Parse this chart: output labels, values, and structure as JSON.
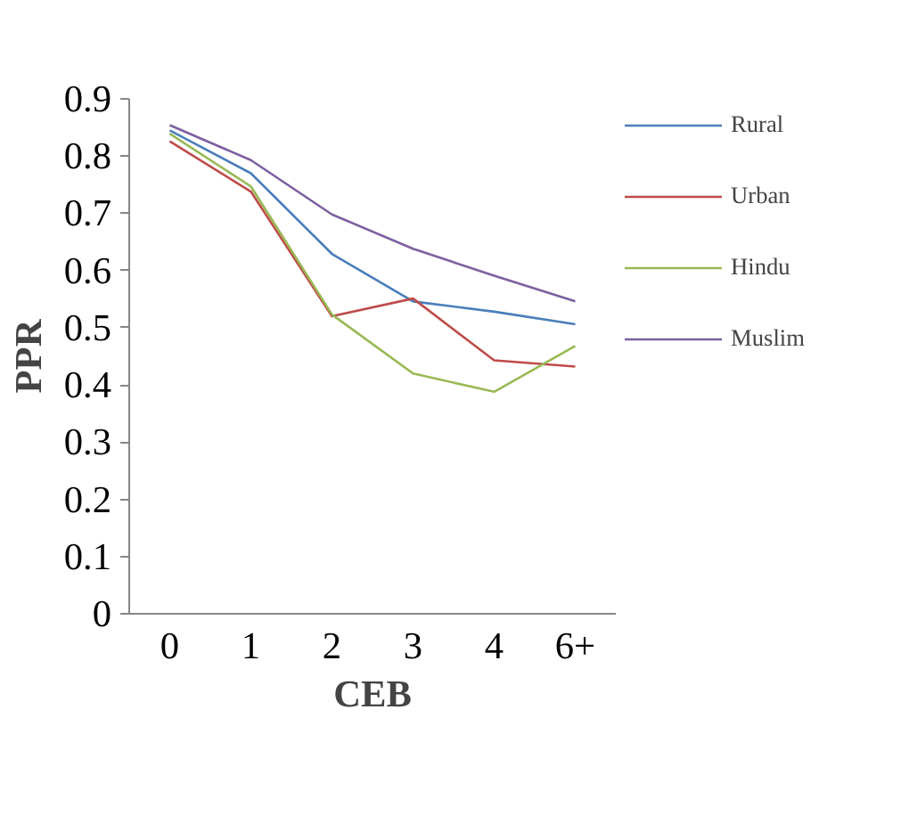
{
  "chart_data": {
    "type": "line",
    "xlabel": "CEB",
    "ylabel": "PPR",
    "categories": [
      "0",
      "1",
      "2",
      "3",
      "4",
      "6+"
    ],
    "series": [
      {
        "name": "Rural",
        "color": "#4a7ebb",
        "values": [
          0.845,
          0.77,
          0.629,
          0.546,
          0.528,
          0.506
        ]
      },
      {
        "name": "Urban",
        "color": "#be4b48",
        "values": [
          0.826,
          0.738,
          0.52,
          0.551,
          0.443,
          0.432
        ]
      },
      {
        "name": "Hindu",
        "color": "#98b954",
        "values": [
          0.839,
          0.747,
          0.523,
          0.42,
          0.388,
          0.468
        ]
      },
      {
        "name": "Muslim",
        "color": "#7d60a0",
        "values": [
          0.854,
          0.793,
          0.698,
          0.638,
          0.591,
          0.546
        ]
      }
    ],
    "ylim": [
      0,
      0.9
    ],
    "yticks": [
      0,
      0.1,
      0.2,
      0.3,
      0.4,
      0.5,
      0.6,
      0.7,
      0.8,
      0.9
    ],
    "grid": false,
    "legend": "right",
    "marker": "none",
    "line_style": "solid"
  }
}
